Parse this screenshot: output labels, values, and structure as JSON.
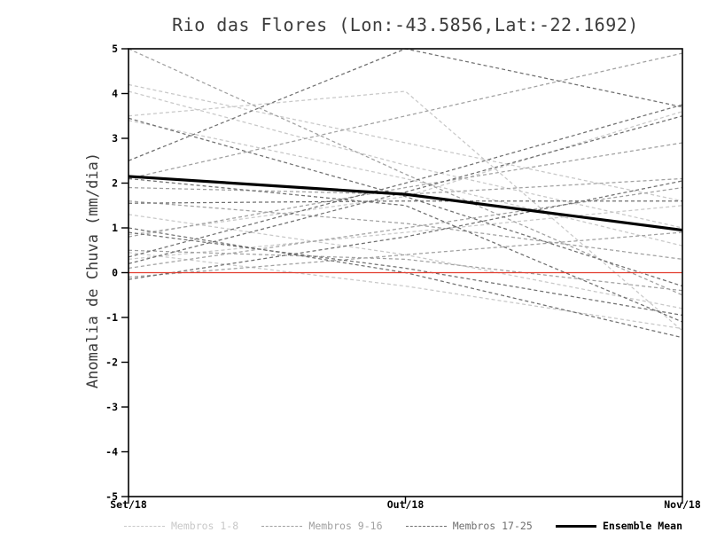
{
  "chart_data": {
    "type": "line",
    "title": "Rio das Flores (Lon:-43.5856,Lat:-22.1692)",
    "ylabel": "Anomalia de Chuva (mm/dia)",
    "x_categories": [
      "Set/18",
      "Out/18",
      "Nov/18"
    ],
    "ylim": [
      -5,
      5
    ],
    "y_ticks": [
      -5,
      -4,
      -3,
      -2,
      -1,
      0,
      1,
      2,
      3,
      4,
      5
    ],
    "grid": false,
    "legend_position": "bottom",
    "axis_color": "#000000",
    "zero_line": {
      "y": 0,
      "color": "#e23b2e"
    },
    "series_groups": [
      {
        "name": "Membros 1-8",
        "color": "#c8c8c8",
        "line_style": "dashed",
        "members": [
          [
            4.2,
            2.9,
            1.6
          ],
          [
            3.5,
            4.05,
            -1.3
          ],
          [
            4.05,
            2.4,
            1.0
          ],
          [
            3.4,
            2.1,
            0.6
          ],
          [
            1.3,
            0.4,
            -0.8
          ],
          [
            0.85,
            1.7,
            3.6
          ],
          [
            0.45,
            -0.3,
            -1.25
          ],
          [
            0.3,
            0.9,
            1.5
          ]
        ]
      },
      {
        "name": "Membros 9-16",
        "color": "#a0a0a0",
        "line_style": "dashed",
        "members": [
          [
            5.0,
            2.2,
            -0.5
          ],
          [
            2.1,
            3.5,
            4.9
          ],
          [
            1.9,
            1.75,
            2.1
          ],
          [
            1.6,
            1.1,
            0.3
          ],
          [
            0.8,
            1.9,
            2.9
          ],
          [
            0.5,
            0.3,
            -0.4
          ],
          [
            0.1,
            1.0,
            1.9
          ],
          [
            -0.1,
            0.4,
            0.9
          ]
        ]
      },
      {
        "name": "Membros 17-25",
        "color": "#6f6f6f",
        "line_style": "dashed",
        "members": [
          [
            2.5,
            5.0,
            3.7
          ],
          [
            0.35,
            2.0,
            3.75
          ],
          [
            2.1,
            1.5,
            -1.1
          ],
          [
            1.55,
            1.6,
            1.6
          ],
          [
            0.9,
            0.1,
            -0.95
          ],
          [
            3.45,
            1.7,
            -0.3
          ],
          [
            0.2,
            1.8,
            3.5
          ],
          [
            1.0,
            0.0,
            -1.45
          ],
          [
            -0.15,
            0.8,
            2.05
          ]
        ]
      }
    ],
    "ensemble_mean": {
      "name": "Ensemble Mean",
      "color": "#000000",
      "line_style": "solid",
      "values": [
        2.15,
        1.75,
        0.95
      ]
    }
  }
}
